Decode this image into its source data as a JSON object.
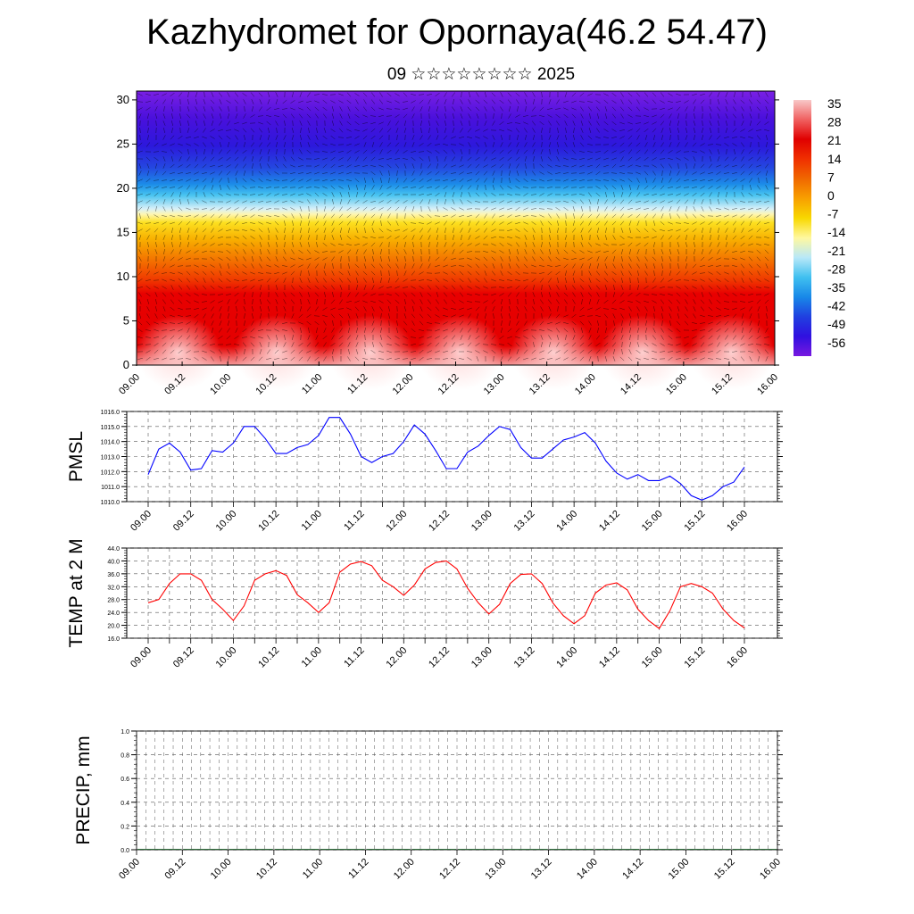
{
  "page": {
    "title": "Kazhydromet for Opornaya(46.2 54.47)",
    "subtitle": "09 ☆☆☆☆☆☆☆☆ 2025"
  },
  "chart_data": [
    {
      "type": "heatmap",
      "title": "Kazhydromet for Opornaya(46.2 54.47)",
      "subtitle": "09 ☆☆☆☆☆☆☆☆ 2025",
      "x_ticks": [
        "09.00",
        "09.12",
        "10.00",
        "10.12",
        "11.00",
        "11.12",
        "12.00",
        "12.12",
        "13.00",
        "13.12",
        "14.00",
        "14.12",
        "15.00",
        "15.12",
        "16.00"
      ],
      "y_ticks": [
        0,
        5,
        10,
        15,
        20,
        25,
        30
      ],
      "ylim": [
        0,
        31
      ],
      "overlay": "wind vectors",
      "colorbar": {
        "labels": [
          "35",
          "28",
          "21",
          "14",
          "7",
          "0",
          "-7",
          "-14",
          "-21",
          "-28",
          "-35",
          "-42",
          "-49",
          "-56"
        ],
        "colors": [
          "#f8c8c8",
          "#f06060",
          "#e00000",
          "#f03000",
          "#f06800",
          "#f8a000",
          "#f8d800",
          "#fff8a0",
          "#b8e8f8",
          "#40c0f0",
          "#1888e8",
          "#2040e0",
          "#3010e0",
          "#7818e0"
        ]
      }
    },
    {
      "type": "line",
      "ylabel": "PMSL",
      "ylim": [
        1010.0,
        1016.0
      ],
      "y_ticks": [
        "1010.0",
        "1011.0",
        "1012.0",
        "1013.0",
        "1014.0",
        "1015.0",
        "1016.0"
      ],
      "x_ticks": [
        "09.00",
        "09.12",
        "10.00",
        "10.12",
        "11.00",
        "11.12",
        "12.00",
        "12.12",
        "13.00",
        "13.12",
        "14.00",
        "14.12",
        "15.00",
        "15.12",
        "16.00"
      ],
      "color": "#0000ff",
      "series": [
        {
          "values": [
            1011.8,
            1013.5,
            1013.9,
            1013.3,
            1012.1,
            1012.2,
            1013.4,
            1013.3,
            1013.9,
            1015.0,
            1015.0,
            1014.2,
            1013.2,
            1013.2,
            1013.6,
            1013.8,
            1014.4,
            1015.6,
            1015.6,
            1014.5,
            1013.0,
            1012.6,
            1013.0,
            1013.2,
            1014.0,
            1015.1,
            1014.5,
            1013.4,
            1012.2,
            1012.2,
            1013.3,
            1013.7,
            1014.4,
            1015.0,
            1014.8,
            1013.6,
            1012.9,
            1012.9,
            1013.5,
            1014.1,
            1014.3,
            1014.6,
            1013.9,
            1012.7,
            1011.9,
            1011.5,
            1011.8,
            1011.4,
            1011.4,
            1011.7,
            1011.2,
            1010.4,
            1010.1,
            1010.4,
            1011.0,
            1011.3,
            1012.3
          ]
        }
      ]
    },
    {
      "type": "line",
      "ylabel": "TEMP at 2 M",
      "ylim": [
        16.0,
        44.0
      ],
      "y_ticks": [
        "16.0",
        "20.0",
        "24.0",
        "28.0",
        "32.0",
        "36.0",
        "40.0",
        "44.0"
      ],
      "x_ticks": [
        "09.00",
        "09.12",
        "10.00",
        "10.12",
        "11.00",
        "11.12",
        "12.00",
        "12.12",
        "13.00",
        "13.12",
        "14.00",
        "14.12",
        "15.00",
        "15.12",
        "16.00"
      ],
      "color": "#ff0000",
      "series": [
        {
          "values": [
            27.0,
            28.0,
            33.0,
            36.0,
            36.0,
            34.0,
            28.0,
            25.0,
            21.5,
            26.0,
            34.0,
            36.0,
            37.0,
            35.5,
            29.5,
            27.0,
            24.0,
            27.0,
            36.5,
            39.0,
            39.8,
            38.5,
            34.0,
            32.0,
            29.3,
            32.5,
            37.5,
            39.5,
            40.0,
            37.5,
            31.5,
            27.0,
            23.5,
            26.5,
            33.0,
            35.8,
            36.0,
            33.0,
            27.0,
            23.0,
            20.5,
            23.0,
            30.0,
            32.5,
            33.2,
            31.0,
            25.0,
            21.5,
            19.0,
            24.5,
            32.0,
            33.0,
            32.0,
            30.0,
            25.0,
            21.5,
            19.2
          ]
        }
      ]
    },
    {
      "type": "bar",
      "ylabel": "PRECIP, mm",
      "ylim": [
        0.0,
        1.0
      ],
      "y_ticks": [
        "0.0",
        "0.2",
        "0.4",
        "0.6",
        "0.8",
        "1.0"
      ],
      "x_ticks": [
        "09.00",
        "09.12",
        "10.00",
        "10.12",
        "11.00",
        "11.12",
        "12.00",
        "12.12",
        "13.00",
        "13.12",
        "14.00",
        "14.12",
        "15.00",
        "15.12",
        "16.00"
      ],
      "values": [
        0,
        0,
        0,
        0,
        0,
        0,
        0,
        0,
        0,
        0,
        0,
        0,
        0,
        0
      ]
    }
  ]
}
